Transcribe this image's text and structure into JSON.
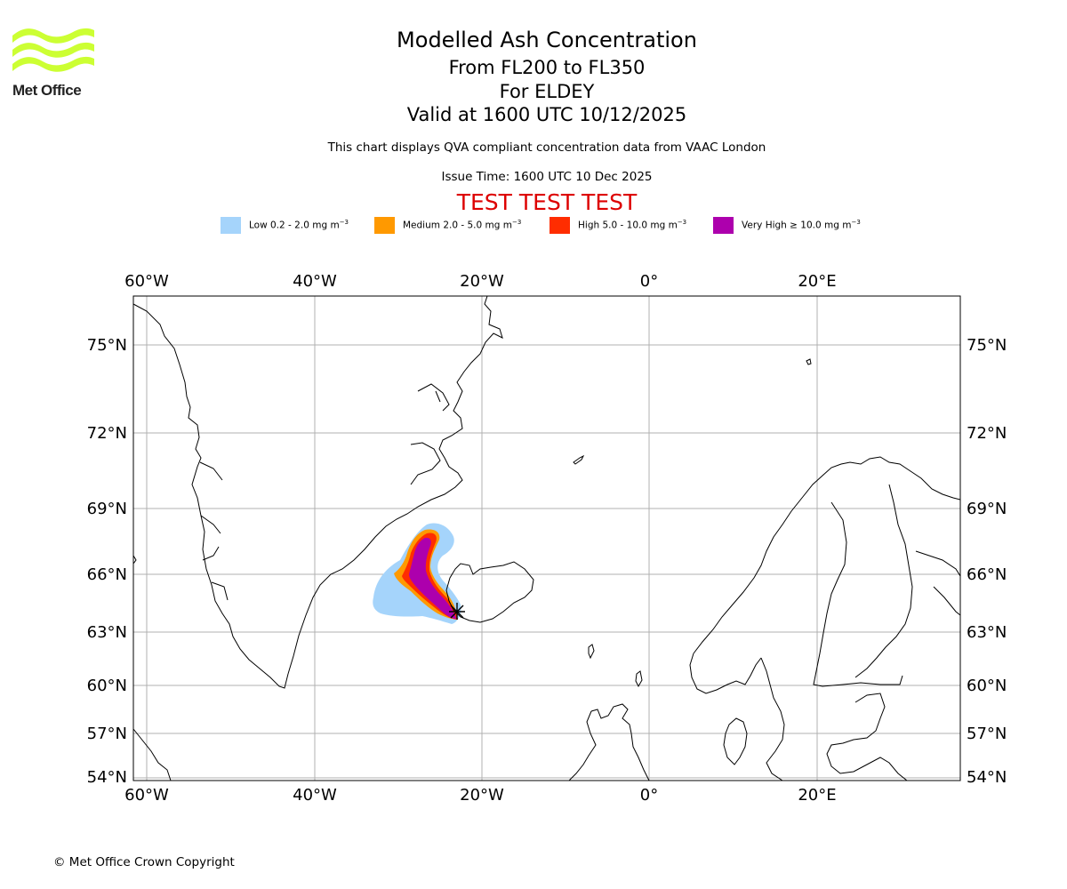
{
  "logo": {
    "text": "Met Office",
    "color": "#ccff33"
  },
  "title": {
    "main": "Modelled Ash Concentration",
    "levels": "From FL200 to FL350",
    "location": "For ELDEY",
    "valid": "Valid at 1600 UTC 10/12/2025",
    "subtitle": "This chart displays QVA compliant concentration data from VAAC London",
    "issue": "Issue Time: 1600 UTC 10 Dec 2025",
    "test": "TEST TEST TEST"
  },
  "legend": [
    {
      "level": "low",
      "label": "Low 0.2 - 2.0 mg m",
      "unit_exp": "−3",
      "color": "#a5d4fb"
    },
    {
      "level": "medium",
      "label": "Medium 2.0 - 5.0 mg m",
      "unit_exp": "−3",
      "color": "#ff9900"
    },
    {
      "level": "high",
      "label": "High 5.0 - 10.0 mg m",
      "unit_exp": "−3",
      "color": "#ff2d00"
    },
    {
      "level": "very_high",
      "label": "Very High ≥ 10.0 mg m",
      "unit_exp": "−3",
      "color": "#ad00ad"
    }
  ],
  "map": {
    "lon_ticks": [
      "60°W",
      "40°W",
      "20°W",
      "0°",
      "20°E"
    ],
    "lat_ticks": [
      "75°N",
      "72°N",
      "69°N",
      "66°N",
      "63°N",
      "60°N",
      "57°N",
      "54°N"
    ],
    "grid_color": "#b0b0b0"
  },
  "copyright": "© Met Office Crown Copyright"
}
